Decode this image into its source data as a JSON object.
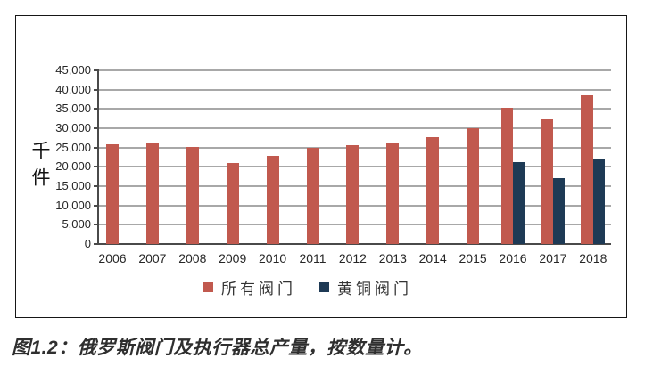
{
  "figure": {
    "caption": "图1.2：俄罗斯阀门及执行器总产量，按数量计。"
  },
  "chart_data": {
    "type": "bar",
    "title": "",
    "ylabel": "千件",
    "xlabel": "",
    "categories": [
      "2006",
      "2007",
      "2008",
      "2009",
      "2010",
      "2011",
      "2012",
      "2013",
      "2014",
      "2015",
      "2016",
      "2017",
      "2018"
    ],
    "series": [
      {
        "name": "所有阀门",
        "color": "#c1594e",
        "values": [
          25800,
          26300,
          25100,
          21000,
          22800,
          24900,
          25700,
          26200,
          27800,
          30000,
          35200,
          32300,
          38500
        ]
      },
      {
        "name": "黄铜阀门",
        "color": "#1e3a55",
        "values": [
          null,
          null,
          null,
          null,
          null,
          null,
          null,
          null,
          null,
          null,
          21300,
          17100,
          21900
        ]
      }
    ],
    "ylim": [
      0,
      45000
    ],
    "yticks": [
      [
        45000,
        "45,000"
      ],
      [
        40000,
        "40,000"
      ],
      [
        35000,
        "35,000"
      ],
      [
        30000,
        "30,000"
      ],
      [
        25000,
        "25,000"
      ],
      [
        20000,
        "20,000"
      ],
      [
        15000,
        "15,000"
      ],
      [
        10000,
        "10,000"
      ],
      [
        5000,
        "5,000"
      ],
      [
        0,
        "0"
      ]
    ],
    "grid": true,
    "legend_position": "bottom",
    "axis_colors": {
      "gridline": "#a8a8a8",
      "axis": "#4a4a4a"
    }
  }
}
